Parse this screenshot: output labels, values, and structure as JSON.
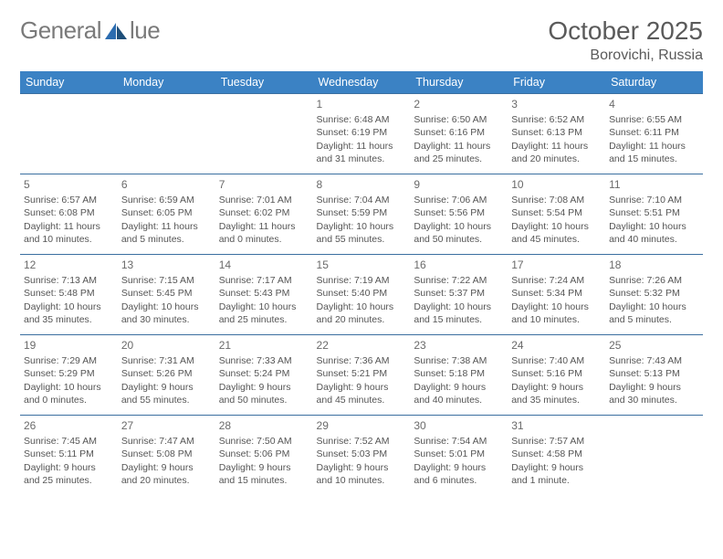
{
  "logo": {
    "text_left": "General",
    "text_right": "lue",
    "brand_color": "#2b6cb0"
  },
  "title": "October 2025",
  "location": "Borovichi, Russia",
  "colors": {
    "header_bg": "#3b82c4",
    "header_text": "#ffffff",
    "row_border": "#3b6fa0",
    "body_text": "#555555",
    "page_bg": "#ffffff"
  },
  "weekdays": [
    "Sunday",
    "Monday",
    "Tuesday",
    "Wednesday",
    "Thursday",
    "Friday",
    "Saturday"
  ],
  "weeks": [
    [
      null,
      null,
      null,
      {
        "n": "1",
        "sr": "Sunrise: 6:48 AM",
        "ss": "Sunset: 6:19 PM",
        "d1": "Daylight: 11 hours",
        "d2": "and 31 minutes."
      },
      {
        "n": "2",
        "sr": "Sunrise: 6:50 AM",
        "ss": "Sunset: 6:16 PM",
        "d1": "Daylight: 11 hours",
        "d2": "and 25 minutes."
      },
      {
        "n": "3",
        "sr": "Sunrise: 6:52 AM",
        "ss": "Sunset: 6:13 PM",
        "d1": "Daylight: 11 hours",
        "d2": "and 20 minutes."
      },
      {
        "n": "4",
        "sr": "Sunrise: 6:55 AM",
        "ss": "Sunset: 6:11 PM",
        "d1": "Daylight: 11 hours",
        "d2": "and 15 minutes."
      }
    ],
    [
      {
        "n": "5",
        "sr": "Sunrise: 6:57 AM",
        "ss": "Sunset: 6:08 PM",
        "d1": "Daylight: 11 hours",
        "d2": "and 10 minutes."
      },
      {
        "n": "6",
        "sr": "Sunrise: 6:59 AM",
        "ss": "Sunset: 6:05 PM",
        "d1": "Daylight: 11 hours",
        "d2": "and 5 minutes."
      },
      {
        "n": "7",
        "sr": "Sunrise: 7:01 AM",
        "ss": "Sunset: 6:02 PM",
        "d1": "Daylight: 11 hours",
        "d2": "and 0 minutes."
      },
      {
        "n": "8",
        "sr": "Sunrise: 7:04 AM",
        "ss": "Sunset: 5:59 PM",
        "d1": "Daylight: 10 hours",
        "d2": "and 55 minutes."
      },
      {
        "n": "9",
        "sr": "Sunrise: 7:06 AM",
        "ss": "Sunset: 5:56 PM",
        "d1": "Daylight: 10 hours",
        "d2": "and 50 minutes."
      },
      {
        "n": "10",
        "sr": "Sunrise: 7:08 AM",
        "ss": "Sunset: 5:54 PM",
        "d1": "Daylight: 10 hours",
        "d2": "and 45 minutes."
      },
      {
        "n": "11",
        "sr": "Sunrise: 7:10 AM",
        "ss": "Sunset: 5:51 PM",
        "d1": "Daylight: 10 hours",
        "d2": "and 40 minutes."
      }
    ],
    [
      {
        "n": "12",
        "sr": "Sunrise: 7:13 AM",
        "ss": "Sunset: 5:48 PM",
        "d1": "Daylight: 10 hours",
        "d2": "and 35 minutes."
      },
      {
        "n": "13",
        "sr": "Sunrise: 7:15 AM",
        "ss": "Sunset: 5:45 PM",
        "d1": "Daylight: 10 hours",
        "d2": "and 30 minutes."
      },
      {
        "n": "14",
        "sr": "Sunrise: 7:17 AM",
        "ss": "Sunset: 5:43 PM",
        "d1": "Daylight: 10 hours",
        "d2": "and 25 minutes."
      },
      {
        "n": "15",
        "sr": "Sunrise: 7:19 AM",
        "ss": "Sunset: 5:40 PM",
        "d1": "Daylight: 10 hours",
        "d2": "and 20 minutes."
      },
      {
        "n": "16",
        "sr": "Sunrise: 7:22 AM",
        "ss": "Sunset: 5:37 PM",
        "d1": "Daylight: 10 hours",
        "d2": "and 15 minutes."
      },
      {
        "n": "17",
        "sr": "Sunrise: 7:24 AM",
        "ss": "Sunset: 5:34 PM",
        "d1": "Daylight: 10 hours",
        "d2": "and 10 minutes."
      },
      {
        "n": "18",
        "sr": "Sunrise: 7:26 AM",
        "ss": "Sunset: 5:32 PM",
        "d1": "Daylight: 10 hours",
        "d2": "and 5 minutes."
      }
    ],
    [
      {
        "n": "19",
        "sr": "Sunrise: 7:29 AM",
        "ss": "Sunset: 5:29 PM",
        "d1": "Daylight: 10 hours",
        "d2": "and 0 minutes."
      },
      {
        "n": "20",
        "sr": "Sunrise: 7:31 AM",
        "ss": "Sunset: 5:26 PM",
        "d1": "Daylight: 9 hours",
        "d2": "and 55 minutes."
      },
      {
        "n": "21",
        "sr": "Sunrise: 7:33 AM",
        "ss": "Sunset: 5:24 PM",
        "d1": "Daylight: 9 hours",
        "d2": "and 50 minutes."
      },
      {
        "n": "22",
        "sr": "Sunrise: 7:36 AM",
        "ss": "Sunset: 5:21 PM",
        "d1": "Daylight: 9 hours",
        "d2": "and 45 minutes."
      },
      {
        "n": "23",
        "sr": "Sunrise: 7:38 AM",
        "ss": "Sunset: 5:18 PM",
        "d1": "Daylight: 9 hours",
        "d2": "and 40 minutes."
      },
      {
        "n": "24",
        "sr": "Sunrise: 7:40 AM",
        "ss": "Sunset: 5:16 PM",
        "d1": "Daylight: 9 hours",
        "d2": "and 35 minutes."
      },
      {
        "n": "25",
        "sr": "Sunrise: 7:43 AM",
        "ss": "Sunset: 5:13 PM",
        "d1": "Daylight: 9 hours",
        "d2": "and 30 minutes."
      }
    ],
    [
      {
        "n": "26",
        "sr": "Sunrise: 7:45 AM",
        "ss": "Sunset: 5:11 PM",
        "d1": "Daylight: 9 hours",
        "d2": "and 25 minutes."
      },
      {
        "n": "27",
        "sr": "Sunrise: 7:47 AM",
        "ss": "Sunset: 5:08 PM",
        "d1": "Daylight: 9 hours",
        "d2": "and 20 minutes."
      },
      {
        "n": "28",
        "sr": "Sunrise: 7:50 AM",
        "ss": "Sunset: 5:06 PM",
        "d1": "Daylight: 9 hours",
        "d2": "and 15 minutes."
      },
      {
        "n": "29",
        "sr": "Sunrise: 7:52 AM",
        "ss": "Sunset: 5:03 PM",
        "d1": "Daylight: 9 hours",
        "d2": "and 10 minutes."
      },
      {
        "n": "30",
        "sr": "Sunrise: 7:54 AM",
        "ss": "Sunset: 5:01 PM",
        "d1": "Daylight: 9 hours",
        "d2": "and 6 minutes."
      },
      {
        "n": "31",
        "sr": "Sunrise: 7:57 AM",
        "ss": "Sunset: 4:58 PM",
        "d1": "Daylight: 9 hours",
        "d2": "and 1 minute."
      },
      null
    ]
  ]
}
